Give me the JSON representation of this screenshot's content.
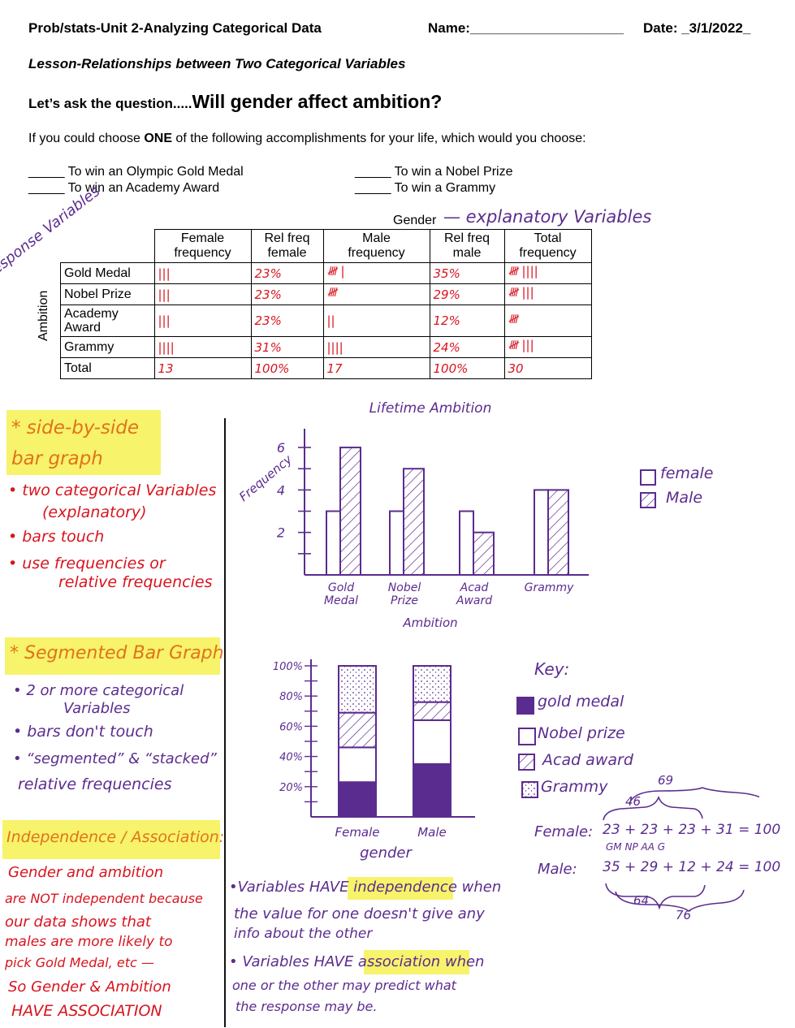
{
  "header": {
    "course": "Prob/stats-Unit 2-Analyzing Categorical Data",
    "name_label": "Name:____________________",
    "date_label": "Date: _3/1/2022_"
  },
  "lesson": "Lesson-Relationships between Two Categorical Variables",
  "question": {
    "lead": "Let’s ask the question.....",
    "big": "Will gender affect ambition?"
  },
  "prompt": {
    "before": "If you could choose ",
    "bold": "ONE",
    "after": " of the following accomplishments for your life, which would you choose:"
  },
  "choices": [
    "_____  To win an Olympic Gold Medal",
    "_____  To win a Nobel Prize",
    "_____  To win an Academy Award",
    "_____  To win a Grammy"
  ],
  "table": {
    "gender_label": "Gender",
    "ambition_label": "Ambition",
    "headers": [
      [
        "Female",
        "frequency"
      ],
      [
        "Rel freq",
        "female"
      ],
      [
        "Male",
        "frequency"
      ],
      [
        "Rel freq",
        "male"
      ],
      [
        "Total",
        "frequency"
      ]
    ],
    "rows": [
      {
        "label": "Gold Medal",
        "cells": [
          "|||",
          "23%",
          "𝍸 |",
          "35%",
          "𝍸 ||||"
        ]
      },
      {
        "label": "Nobel Prize",
        "cells": [
          "|||",
          "23%",
          "𝍸",
          "29%",
          "𝍸 |||"
        ]
      },
      {
        "label": "Academy Award",
        "cells": [
          "|||",
          "23%",
          "||",
          "12%",
          "𝍸"
        ]
      },
      {
        "label": "Grammy",
        "cells": [
          "||||",
          "31%",
          "||||",
          "24%",
          "𝍸 |||"
        ]
      },
      {
        "label": "Total",
        "cells": [
          "13",
          "100%",
          "17",
          "100%",
          "30"
        ]
      }
    ]
  },
  "annotations": {
    "explanatory": "— explanatory Variables",
    "response": "response Variables",
    "side_by_side_title": "* side-by-side bar graph",
    "side_by_side_notes": [
      "• two categorical Variables",
      "(explanatory)",
      "• bars touch",
      "• use frequencies or",
      "relative frequencies"
    ],
    "segmented_title": "* Segmented Bar Graph",
    "segmented_notes": [
      "• 2 or more categorical",
      "Variables",
      "• bars don't touch",
      "• “segmented” & “stacked”",
      "relative frequencies"
    ],
    "independence_title": "Independence / Association:",
    "independence_notes": [
      "Gender and ambition",
      "are NOT independent because",
      "our data shows that",
      "males are more likely to",
      "pick Gold Medal, etc —",
      "So Gender & Ambition",
      "HAVE ASSOCIATION"
    ],
    "definitions": [
      "•Variables HAVE independence when",
      "the value for one doesn't give any",
      "info about the other",
      "• Variables HAVE association when",
      "one or the other may predict what",
      "the response may be."
    ],
    "sums": {
      "top69": "69",
      "top46": "46",
      "female_label": "Female:",
      "female_eq": "23 + 23 + 23 + 31 = 100",
      "codes": "GM    NP    AA    G",
      "male_label": "Male:",
      "male_eq": "35 + 29 + 12 + 24 = 100",
      "bottom64": "64",
      "bottom76": "76"
    }
  },
  "chart_data": [
    {
      "type": "bar",
      "title": "Lifetime Ambition",
      "xlabel": "Ambition",
      "ylabel": "Frequency",
      "categories": [
        "Gold Medal",
        "Nobel Prize",
        "Acad Award",
        "Grammy"
      ],
      "yticks": [
        "2",
        "4",
        "6"
      ],
      "ylim": [
        0,
        6.5
      ],
      "series": [
        {
          "name": "female",
          "values": [
            3,
            3,
            3,
            4
          ],
          "pattern": "plain"
        },
        {
          "name": "Male",
          "values": [
            6,
            5,
            2,
            4
          ],
          "pattern": "hatched"
        }
      ],
      "legend": "top-right"
    },
    {
      "type": "bar",
      "stacked": true,
      "xlabel": "gender",
      "categories": [
        "Female",
        "Male"
      ],
      "yticks": [
        "20%",
        "40%",
        "60%",
        "80%",
        "100%"
      ],
      "ylim": [
        0,
        100
      ],
      "key_title": "Key:",
      "series": [
        {
          "name": "gold medal",
          "values": [
            23,
            35
          ],
          "color": "#5b2c8f"
        },
        {
          "name": "Nobel prize",
          "values": [
            23,
            29
          ],
          "color": "#ffffff"
        },
        {
          "name": "Acad award",
          "values": [
            23,
            12
          ],
          "color": "hatched"
        },
        {
          "name": "Grammy",
          "values": [
            31,
            24
          ],
          "color": "dotted"
        }
      ]
    }
  ]
}
